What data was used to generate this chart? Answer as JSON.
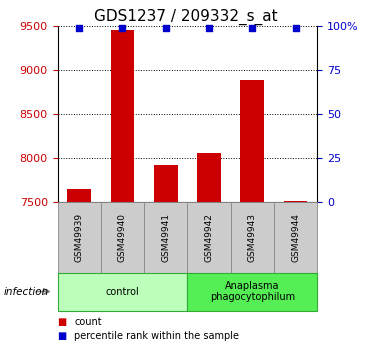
{
  "title": "GDS1237 / 209332_s_at",
  "samples": [
    "GSM49939",
    "GSM49940",
    "GSM49941",
    "GSM49942",
    "GSM49943",
    "GSM49944"
  ],
  "counts": [
    7650,
    9450,
    7920,
    8050,
    8880,
    7510
  ],
  "percentiles": [
    99,
    99,
    99,
    99,
    99,
    99
  ],
  "ylim_left": [
    7500,
    9500
  ],
  "ylim_right": [
    0,
    100
  ],
  "yticks_left": [
    7500,
    8000,
    8500,
    9000,
    9500
  ],
  "yticks_right": [
    0,
    25,
    50,
    75,
    100
  ],
  "ytick_labels_right": [
    "0",
    "25",
    "50",
    "75",
    "100%"
  ],
  "bar_color": "#cc0000",
  "dot_color": "#0000cc",
  "bar_width": 0.55,
  "groups": [
    {
      "label": "control",
      "indices": [
        0,
        1,
        2
      ],
      "color": "#bbffbb"
    },
    {
      "label": "Anaplasma\nphagocytophilum",
      "indices": [
        3,
        4,
        5
      ],
      "color": "#55ee55"
    }
  ],
  "infection_label": "infection",
  "legend_items": [
    {
      "color": "#cc0000",
      "label": "count"
    },
    {
      "color": "#0000cc",
      "label": "percentile rank within the sample"
    }
  ],
  "title_fontsize": 11,
  "tick_fontsize": 8,
  "left_tick_color": "#cc0000",
  "right_tick_color": "#0000cc",
  "sample_box_color": "#cccccc",
  "sample_box_edge": "#888888"
}
